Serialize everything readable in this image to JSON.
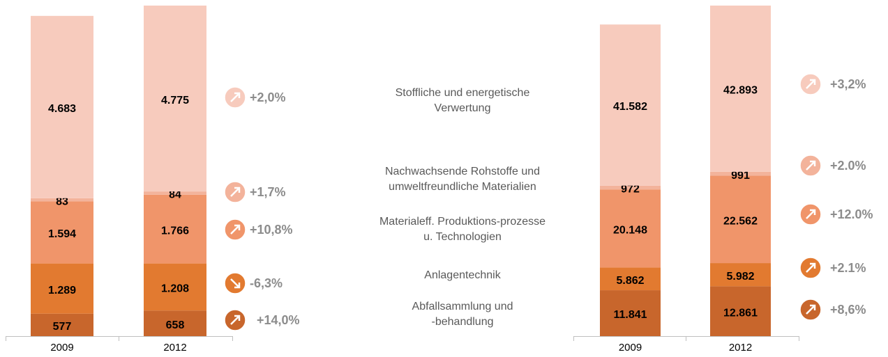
{
  "segment_labels": [
    "Abfallsammlung und\n-behandlung",
    "Anlagentechnik",
    "Materialeff. Produktions-prozesse\nu. Technologien",
    "Nachwachsende Rohstoffe und\numweltfreundliche Materialien",
    "Stoffliche und energetische\nVerwertung"
  ],
  "chart_data": [
    {
      "type": "bar",
      "stacked": true,
      "categories": [
        "2009",
        "2012"
      ],
      "series": [
        {
          "color": "#c8662c",
          "values": [
            577,
            658
          ],
          "value_labels": [
            "577",
            "658"
          ]
        },
        {
          "color": "#e27a30",
          "values": [
            1289,
            1208
          ],
          "value_labels": [
            "1.289",
            "1.208"
          ]
        },
        {
          "color": "#f0956a",
          "values": [
            1594,
            1766
          ],
          "value_labels": [
            "1.594",
            "1.766"
          ]
        },
        {
          "color": "#f3b39b",
          "values": [
            83,
            84
          ],
          "value_labels": [
            "83",
            "84"
          ]
        },
        {
          "color": "#f7cbbd",
          "values": [
            4683,
            4775
          ],
          "value_labels": [
            "4.683",
            "4.775"
          ]
        }
      ],
      "changes": [
        14.0,
        -6.3,
        10.8,
        1.7,
        2.0
      ],
      "change_labels": [
        "+14,0%",
        "-6,3%",
        "+10,8%",
        "+1,7%",
        "+2,0%"
      ]
    },
    {
      "type": "bar",
      "stacked": true,
      "categories": [
        "2009",
        "2012"
      ],
      "series": [
        {
          "color": "#c8662c",
          "values": [
            11841,
            12861
          ],
          "value_labels": [
            "11.841",
            "12.861"
          ]
        },
        {
          "color": "#e27a30",
          "values": [
            5862,
            5982
          ],
          "value_labels": [
            "5.862",
            "5.982"
          ]
        },
        {
          "color": "#f0956a",
          "values": [
            20148,
            22562
          ],
          "value_labels": [
            "20.148",
            "22.562"
          ]
        },
        {
          "color": "#f3b39b",
          "values": [
            972,
            991
          ],
          "value_labels": [
            "972",
            "991"
          ]
        },
        {
          "color": "#f7cbbd",
          "values": [
            41582,
            42893
          ],
          "value_labels": [
            "41.582",
            "42.893"
          ]
        }
      ],
      "changes": [
        8.6,
        2.1,
        12.0,
        2.0,
        3.2
      ],
      "change_labels": [
        "+8,6%",
        "+2.1%",
        "+12.0%",
        "+2.0%",
        "+3,2%"
      ]
    }
  ]
}
